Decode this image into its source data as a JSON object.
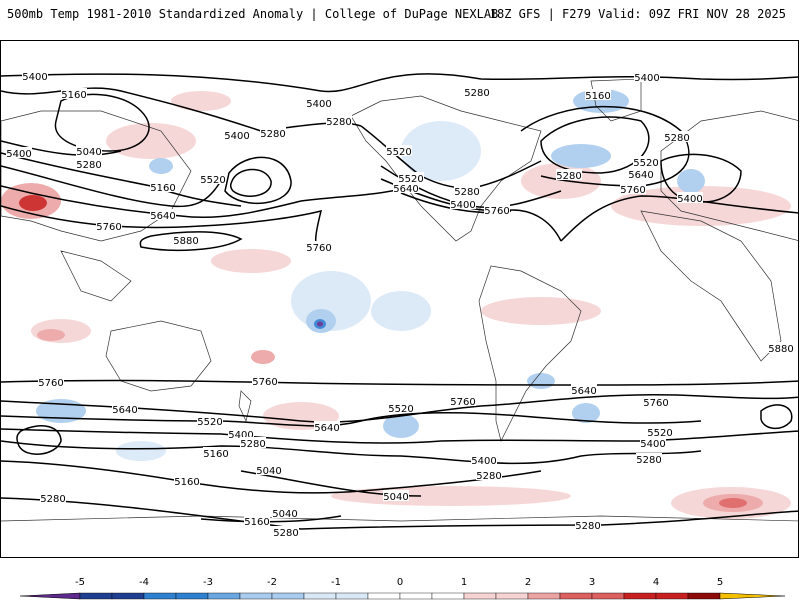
{
  "header": {
    "title_left": "500mb Temp 1981-2010 Standardized Anomaly | College of DuPage NEXLAB",
    "title_right": "18Z GFS | F279 Valid: 09Z FRI NOV 28 2025"
  },
  "map": {
    "contour_levels": [
      "5040",
      "5160",
      "5280",
      "5400",
      "5520",
      "5640",
      "5760",
      "5880"
    ],
    "contour_labels": [
      {
        "text": "5400",
        "lx": 34,
        "ly": 75
      },
      {
        "text": "5160",
        "lx": 73,
        "ly": 93
      },
      {
        "text": "5400",
        "lx": 18,
        "ly": 152
      },
      {
        "text": "5040",
        "lx": 88,
        "ly": 150
      },
      {
        "text": "5280",
        "lx": 88,
        "ly": 163
      },
      {
        "text": "5160",
        "lx": 162,
        "ly": 186
      },
      {
        "text": "5640",
        "lx": 162,
        "ly": 214
      },
      {
        "text": "5760",
        "lx": 108,
        "ly": 225
      },
      {
        "text": "5400",
        "lx": 236,
        "ly": 134
      },
      {
        "text": "5280",
        "lx": 272,
        "ly": 132
      },
      {
        "text": "5520",
        "lx": 212,
        "ly": 178
      },
      {
        "text": "5400",
        "lx": 318,
        "ly": 102
      },
      {
        "text": "5280",
        "lx": 338,
        "ly": 120
      },
      {
        "text": "5880",
        "lx": 185,
        "ly": 239
      },
      {
        "text": "5760",
        "lx": 318,
        "ly": 246
      },
      {
        "text": "5280",
        "lx": 476,
        "ly": 91
      },
      {
        "text": "5520",
        "lx": 398,
        "ly": 150
      },
      {
        "text": "5640",
        "lx": 405,
        "ly": 187
      },
      {
        "text": "5520",
        "lx": 410,
        "ly": 177
      },
      {
        "text": "5280",
        "lx": 466,
        "ly": 190
      },
      {
        "text": "5400",
        "lx": 462,
        "ly": 203
      },
      {
        "text": "5760",
        "lx": 496,
        "ly": 209
      },
      {
        "text": "5160",
        "lx": 597,
        "ly": 94
      },
      {
        "text": "5400",
        "lx": 646,
        "ly": 76
      },
      {
        "text": "5280",
        "lx": 676,
        "ly": 136
      },
      {
        "text": "5280",
        "lx": 568,
        "ly": 174
      },
      {
        "text": "5520",
        "lx": 645,
        "ly": 161
      },
      {
        "text": "5640",
        "lx": 640,
        "ly": 173
      },
      {
        "text": "5760",
        "lx": 632,
        "ly": 188
      },
      {
        "text": "5400",
        "lx": 689,
        "ly": 197
      },
      {
        "text": "5880",
        "lx": 780,
        "ly": 347
      },
      {
        "text": "5760",
        "lx": 50,
        "ly": 381
      },
      {
        "text": "5760",
        "lx": 264,
        "ly": 380
      },
      {
        "text": "5640",
        "lx": 124,
        "ly": 408
      },
      {
        "text": "5520",
        "lx": 209,
        "ly": 420
      },
      {
        "text": "5400",
        "lx": 240,
        "ly": 433
      },
      {
        "text": "5280",
        "lx": 252,
        "ly": 442
      },
      {
        "text": "5160",
        "lx": 215,
        "ly": 452
      },
      {
        "text": "5040",
        "lx": 268,
        "ly": 469
      },
      {
        "text": "5640",
        "lx": 326,
        "ly": 426
      },
      {
        "text": "5520",
        "lx": 400,
        "ly": 407
      },
      {
        "text": "5760",
        "lx": 462,
        "ly": 400
      },
      {
        "text": "5640",
        "lx": 583,
        "ly": 389
      },
      {
        "text": "5760",
        "lx": 655,
        "ly": 401
      },
      {
        "text": "5520",
        "lx": 659,
        "ly": 431
      },
      {
        "text": "5400",
        "lx": 652,
        "ly": 442
      },
      {
        "text": "5280",
        "lx": 648,
        "ly": 458
      },
      {
        "text": "5400",
        "lx": 483,
        "ly": 459
      },
      {
        "text": "5280",
        "lx": 488,
        "ly": 474
      },
      {
        "text": "5040",
        "lx": 395,
        "ly": 495
      },
      {
        "text": "5160",
        "lx": 186,
        "ly": 480
      },
      {
        "text": "5280",
        "lx": 52,
        "ly": 497
      },
      {
        "text": "5040",
        "lx": 284,
        "ly": 512
      },
      {
        "text": "5160",
        "lx": 256,
        "ly": 520
      },
      {
        "text": "5280",
        "lx": 285,
        "ly": 531
      },
      {
        "text": "5280",
        "lx": 587,
        "ly": 524
      }
    ]
  },
  "colorbar": {
    "ticks": [
      "-5",
      "-4",
      "-3",
      "-2",
      "-1",
      "0",
      "1",
      "2",
      "3",
      "4",
      "5"
    ],
    "colors": [
      "#5b2a8c",
      "#1f3e8f",
      "#2f7fd0",
      "#6aa6e0",
      "#a9cbee",
      "#d9e8f7",
      "#ffffff",
      "#ffffff",
      "#f6d3d3",
      "#eca3a3",
      "#dd6060",
      "#c82020",
      "#8c0a0a",
      "#f5c000"
    ]
  }
}
